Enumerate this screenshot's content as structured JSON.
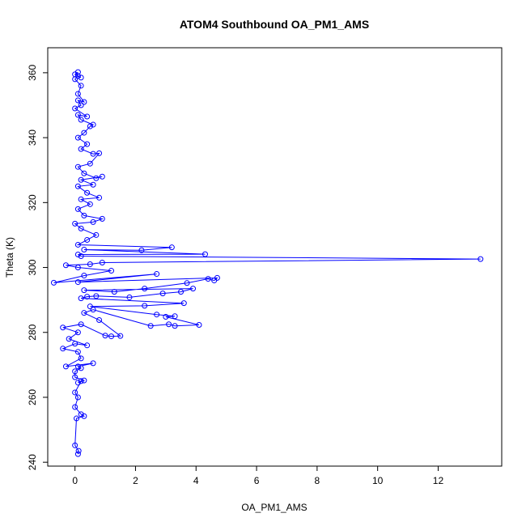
{
  "chart_data": {
    "type": "line",
    "title": "ATOM4 Southbound OA_PM1_AMS",
    "xlabel": "OA_PM1_AMS",
    "ylabel": "Theta (K)",
    "xlim": [
      -0.9,
      14.1
    ],
    "ylim": [
      238.8,
      367.7
    ],
    "xticks": [
      0,
      2,
      4,
      6,
      8,
      10,
      12
    ],
    "yticks": [
      240,
      260,
      280,
      300,
      320,
      340,
      360
    ],
    "color": "#0000ff",
    "marker": "open-circle",
    "grid": false,
    "series": [
      {
        "values": [
          [
            0.1,
            242.5
          ],
          [
            0.12,
            243.5
          ],
          [
            0.0,
            245.2
          ],
          [
            0.05,
            253.5
          ],
          [
            0.3,
            254.2
          ],
          [
            0.2,
            254.8
          ],
          [
            0.0,
            257.0
          ],
          [
            0.1,
            260.0
          ],
          [
            0.0,
            261.5
          ],
          [
            0.2,
            265.0
          ],
          [
            0.1,
            264.5
          ],
          [
            0.3,
            265.2
          ],
          [
            0.0,
            266.2
          ],
          [
            0.0,
            268.0
          ],
          [
            0.2,
            269.0
          ],
          [
            0.1,
            269.5
          ],
          [
            0.6,
            270.5
          ],
          [
            -0.3,
            269.5
          ],
          [
            0.2,
            272.0
          ],
          [
            0.1,
            274.0
          ],
          [
            -0.4,
            275.0
          ],
          [
            0.0,
            276.5
          ],
          [
            0.4,
            276.0
          ],
          [
            -0.2,
            278.0
          ],
          [
            0.1,
            280.0
          ],
          [
            -0.4,
            281.5
          ],
          [
            0.2,
            282.5
          ],
          [
            1.0,
            279.0
          ],
          [
            1.2,
            278.8
          ],
          [
            1.5,
            278.9
          ],
          [
            0.8,
            283.8
          ],
          [
            0.3,
            286.0
          ],
          [
            0.6,
            287.0
          ],
          [
            2.5,
            282.0
          ],
          [
            3.1,
            282.5
          ],
          [
            3.3,
            282.0
          ],
          [
            4.1,
            282.3
          ],
          [
            3.0,
            284.8
          ],
          [
            3.3,
            285.0
          ],
          [
            2.7,
            285.5
          ],
          [
            0.5,
            288.0
          ],
          [
            2.3,
            288.2
          ],
          [
            3.6,
            289.0
          ],
          [
            0.2,
            290.5
          ],
          [
            0.4,
            291.0
          ],
          [
            0.7,
            291.2
          ],
          [
            1.8,
            290.8
          ],
          [
            2.9,
            292.0
          ],
          [
            3.5,
            292.5
          ],
          [
            3.9,
            293.5
          ],
          [
            0.3,
            293.0
          ],
          [
            1.3,
            292.5
          ],
          [
            2.3,
            293.5
          ],
          [
            3.7,
            295.2
          ],
          [
            4.4,
            296.5
          ],
          [
            4.6,
            296.0
          ],
          [
            4.7,
            296.8
          ],
          [
            0.1,
            295.5
          ],
          [
            2.7,
            298.0
          ],
          [
            -0.7,
            295.3
          ],
          [
            0.3,
            297.5
          ],
          [
            1.2,
            299.0
          ],
          [
            0.1,
            300.0
          ],
          [
            -0.3,
            300.7
          ],
          [
            0.5,
            301.0
          ],
          [
            0.9,
            301.5
          ],
          [
            13.4,
            302.6
          ],
          [
            0.2,
            303.5
          ],
          [
            0.1,
            304.0
          ],
          [
            4.3,
            304.1
          ],
          [
            0.3,
            305.5
          ],
          [
            2.2,
            305.3
          ],
          [
            3.2,
            306.2
          ],
          [
            0.1,
            307.0
          ],
          [
            0.4,
            308.5
          ],
          [
            0.7,
            310.0
          ],
          [
            0.2,
            312.0
          ],
          [
            0.0,
            313.5
          ],
          [
            0.6,
            314.0
          ],
          [
            0.9,
            315.0
          ],
          [
            0.3,
            316.0
          ],
          [
            0.1,
            318.0
          ],
          [
            0.5,
            319.5
          ],
          [
            0.2,
            321.0
          ],
          [
            0.8,
            321.5
          ],
          [
            0.4,
            323.0
          ],
          [
            0.1,
            325.0
          ],
          [
            0.6,
            325.5
          ],
          [
            0.2,
            327.0
          ],
          [
            0.9,
            328.0
          ],
          [
            0.7,
            327.5
          ],
          [
            0.3,
            329.0
          ],
          [
            0.1,
            331.0
          ],
          [
            0.5,
            332.0
          ],
          [
            0.8,
            335.2
          ],
          [
            0.6,
            335.0
          ],
          [
            0.2,
            336.5
          ],
          [
            0.4,
            338.0
          ],
          [
            0.1,
            340.0
          ],
          [
            0.3,
            341.5
          ],
          [
            0.5,
            343.5
          ],
          [
            0.6,
            344.0
          ],
          [
            0.2,
            345.5
          ],
          [
            0.1,
            347.0
          ],
          [
            0.4,
            346.5
          ],
          [
            0.0,
            349.0
          ],
          [
            0.2,
            350.0
          ],
          [
            0.1,
            351.5
          ],
          [
            0.3,
            351.0
          ],
          [
            0.1,
            353.5
          ],
          [
            0.2,
            356.0
          ],
          [
            0.0,
            358.0
          ],
          [
            0.1,
            359.0
          ],
          [
            0.2,
            358.5
          ],
          [
            0.0,
            359.5
          ],
          [
            0.1,
            360.2
          ]
        ]
      }
    ]
  }
}
